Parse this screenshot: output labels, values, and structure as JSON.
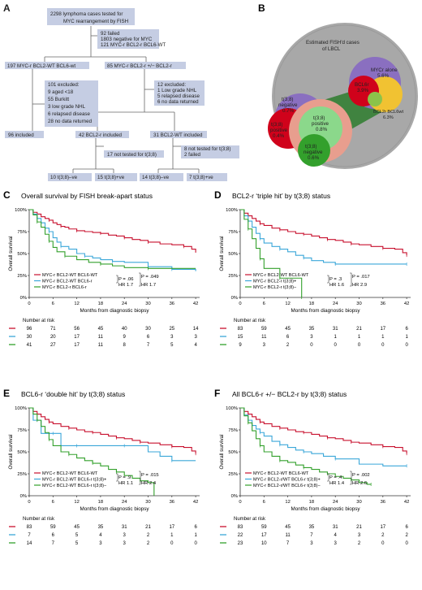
{
  "panelA": {
    "letter": "A",
    "boxes": {
      "top": [
        "2298 lymphoma cases tested for",
        "MYC rearrangement by FISH"
      ],
      "failed": [
        "92 failed",
        "1803 negative for MYC",
        "121 MYC-r BCL2-r BCL6-WT"
      ],
      "left": "197 MYC-r BCL2-WT BCL6-wt",
      "right": "85 MYC-r BCL2-r +/− BCL2-r",
      "excl1": [
        "101 excluded:",
        "9 aged <18",
        "55 Burkitt",
        "3 low grade NHL",
        "6 relapsed disease",
        "28 no data returned"
      ],
      "excl2": [
        "12 excluded:",
        "1 Low grade NHL",
        "5 relapsed disease",
        "6 no data returned"
      ],
      "inc96": "96 included",
      "inc42": "42 BCL2-r included",
      "inc31": "31 BCL2-WT included",
      "nt17": "17 not tested for t(3;8)",
      "nt8": [
        "8 not tested for t(3;8)",
        "2 failed"
      ],
      "r10": "10 t(3;8)–ve",
      "r15": "15 t(3;8)+ve",
      "r14": "14 t(3;8)–ve",
      "r7": "7 t(3;8)+ve"
    }
  },
  "panelB": {
    "letter": "B",
    "title": [
      "Estimated FISH'd cases",
      "of LBCL"
    ],
    "labels": {
      "mycr_alone": [
        "MYCr alone",
        "5.6%"
      ],
      "bcl6r": [
        "BCL6r",
        "3.9%"
      ],
      "bcl2r": [
        "BCL2r BCL6wt",
        "6.3%"
      ],
      "t38neg": [
        "t(3;8)",
        "negative",
        "0.7%"
      ],
      "t38pos": [
        "t(3;8)",
        "positive",
        "0.4%"
      ],
      "t38pos2": [
        "t(3;8)",
        "positive",
        "0.8%"
      ],
      "t38neg2": [
        "t(3;8)",
        "negative",
        "0.6%"
      ]
    }
  },
  "colors": {
    "red": "#c8102e",
    "blue": "#3ba7d9",
    "green": "#33a02c",
    "box": "#c5cde3"
  },
  "km": {
    "ylabel": "Overall survival",
    "xlabel": "Months from diagnostic biopsy",
    "risk_header": "Number at risk",
    "ticks_x": [
      "0",
      "6",
      "12",
      "18",
      "24",
      "30",
      "36",
      "42"
    ],
    "ticks_y": [
      "0%",
      "25%",
      "50%",
      "75%",
      "100%"
    ]
  },
  "chart_data": [
    {
      "panel": "C",
      "type": "line",
      "title": "Overall survival by FISH break-apart status",
      "xlim": [
        0,
        43
      ],
      "ylim": [
        0,
        100
      ],
      "series": [
        {
          "name": "MYC-r BCL2-WT BCL6-WT",
          "color": "red",
          "x": [
            0,
            1,
            2,
            3,
            4,
            5,
            6,
            7,
            8,
            9,
            10,
            12,
            14,
            16,
            18,
            20,
            22,
            24,
            26,
            28,
            30,
            33,
            36,
            39,
            41,
            42
          ],
          "y": [
            100,
            97,
            95,
            92,
            90,
            88,
            85,
            83,
            81,
            80,
            78,
            76,
            75,
            74,
            73,
            71,
            70,
            68,
            66,
            65,
            63,
            61,
            60,
            58,
            55,
            51
          ]
        },
        {
          "name": "MYC-r BCL2-WT BCL6-r",
          "color": "blue",
          "x": [
            0,
            1,
            2,
            3,
            4,
            5,
            6,
            7,
            8,
            10,
            12,
            14,
            16,
            18,
            21,
            24,
            30,
            36,
            42
          ],
          "y": [
            100,
            95,
            90,
            85,
            79,
            75,
            68,
            63,
            58,
            55,
            50,
            47,
            45,
            43,
            41,
            40,
            35,
            32,
            30
          ]
        },
        {
          "name": "MYC-r BCL2-r BCL6-r",
          "color": "green",
          "x": [
            0,
            1,
            2,
            3,
            4,
            5,
            6,
            7,
            9,
            12,
            15,
            18,
            21,
            24,
            30,
            36,
            42
          ],
          "y": [
            100,
            94,
            86,
            80,
            72,
            64,
            57,
            52,
            47,
            43,
            40,
            38,
            36,
            34,
            33,
            33,
            33
          ]
        }
      ],
      "stats": [
        [
          "P = .06",
          "HR 1.7"
        ],
        [
          "P = .049",
          "HR 1.7"
        ]
      ],
      "risk": [
        [
          96,
          71,
          56,
          45,
          40,
          30,
          25,
          14
        ],
        [
          30,
          20,
          17,
          11,
          9,
          6,
          3,
          3
        ],
        [
          41,
          27,
          17,
          11,
          8,
          7,
          5,
          4
        ]
      ]
    },
    {
      "panel": "D",
      "type": "line",
      "title": "BCL2-r ‘triple hit’ by t(3;8) status",
      "xlim": [
        0,
        43
      ],
      "ylim": [
        0,
        100
      ],
      "series": [
        {
          "name": "MYC-r BCL2-WT BCL6-WT",
          "color": "red",
          "x": [
            0,
            1,
            2,
            3,
            4,
            5,
            6,
            8,
            10,
            12,
            14,
            16,
            18,
            20,
            22,
            24,
            26,
            28,
            30,
            33,
            36,
            39,
            41,
            42
          ],
          "y": [
            100,
            96,
            93,
            90,
            87,
            84,
            82,
            79,
            77,
            75,
            73,
            72,
            70,
            68,
            66,
            65,
            63,
            61,
            60,
            58,
            56,
            55,
            51,
            48
          ]
        },
        {
          "name": "MYC-r BCL2-r t(3;8)+",
          "color": "blue",
          "x": [
            0,
            1,
            2,
            3,
            4,
            5,
            6,
            8,
            10,
            12,
            14,
            16,
            18,
            21,
            24,
            30,
            36,
            42
          ],
          "y": [
            100,
            93,
            87,
            80,
            73,
            67,
            62,
            58,
            55,
            52,
            48,
            45,
            42,
            40,
            38,
            38,
            38,
            38
          ]
        },
        {
          "name": "MYC-r BCL2-r t(3;8)−",
          "color": "green",
          "x": [
            0,
            1,
            2,
            3,
            4,
            5,
            6,
            8,
            10,
            12,
            14,
            15.5
          ],
          "y": [
            100,
            89,
            78,
            67,
            56,
            44,
            33,
            33,
            22,
            22,
            22,
            0
          ]
        }
      ],
      "stats": [
        [
          "P = .3",
          "HR 1.6"
        ],
        [
          "P = .017",
          "HR 2.9"
        ]
      ],
      "risk": [
        [
          83,
          59,
          45,
          35,
          31,
          21,
          17,
          6
        ],
        [
          15,
          11,
          6,
          3,
          1,
          1,
          1,
          1
        ],
        [
          9,
          3,
          2,
          0,
          0,
          0,
          0,
          0
        ]
      ]
    },
    {
      "panel": "E",
      "type": "line",
      "title": "BCL6-r ‘double hit’ by t(3;8) status",
      "xlim": [
        0,
        43
      ],
      "ylim": [
        0,
        100
      ],
      "series": [
        {
          "name": "MYC-r BCL2-WT BCL6-WT",
          "color": "red",
          "x": [
            0,
            1,
            2,
            3,
            4,
            5,
            6,
            8,
            10,
            12,
            14,
            16,
            18,
            20,
            22,
            24,
            26,
            28,
            30,
            33,
            36,
            39,
            41,
            42
          ],
          "y": [
            100,
            96,
            93,
            90,
            87,
            84,
            82,
            79,
            77,
            75,
            73,
            72,
            70,
            68,
            66,
            65,
            63,
            61,
            60,
            58,
            56,
            55,
            51,
            48
          ]
        },
        {
          "name": "MYC-r BCL2-WT BCL6-r t(3;8)+",
          "color": "blue",
          "x": [
            0,
            1,
            2,
            3,
            4,
            6,
            8,
            10,
            12,
            14,
            18,
            24,
            30,
            33,
            36,
            42
          ],
          "y": [
            100,
            86,
            86,
            71,
            71,
            71,
            57,
            57,
            57,
            57,
            57,
            57,
            50,
            45,
            40,
            40
          ]
        },
        {
          "name": "MYC-r BCL2-WT BCL6-r t(3;8)−",
          "color": "green",
          "x": [
            0,
            1,
            2,
            3,
            4,
            5,
            6,
            8,
            10,
            12,
            14,
            16,
            18,
            20,
            22,
            24,
            26,
            28,
            30,
            31.5
          ],
          "y": [
            100,
            93,
            86,
            79,
            72,
            64,
            57,
            50,
            47,
            43,
            40,
            37,
            34,
            30,
            27,
            23,
            20,
            17,
            15,
            0
          ]
        }
      ],
      "stats": [
        [
          "P = .9",
          "HR 1.1"
        ],
        [
          "P = .015",
          "HR 2.4"
        ]
      ],
      "risk": [
        [
          83,
          59,
          45,
          35,
          31,
          21,
          17,
          6
        ],
        [
          7,
          6,
          5,
          4,
          3,
          2,
          1,
          1
        ],
        [
          14,
          7,
          5,
          3,
          3,
          2,
          0,
          0
        ]
      ]
    },
    {
      "panel": "F",
      "type": "line",
      "title": "All BCL6-r +/− BCL2-r by t(3;8) status",
      "xlim": [
        0,
        43
      ],
      "ylim": [
        0,
        100
      ],
      "series": [
        {
          "name": "MYC-r BCL2-WT BCL6-WT",
          "color": "red",
          "x": [
            0,
            1,
            2,
            3,
            4,
            5,
            6,
            8,
            10,
            12,
            14,
            16,
            18,
            20,
            22,
            24,
            26,
            28,
            30,
            33,
            36,
            39,
            41,
            42
          ],
          "y": [
            100,
            96,
            93,
            90,
            87,
            84,
            82,
            79,
            77,
            75,
            73,
            72,
            70,
            68,
            66,
            65,
            63,
            61,
            60,
            58,
            56,
            55,
            51,
            48
          ]
        },
        {
          "name": "MYC-r BCL2-r/WT BCL6-r t(3;8)+",
          "color": "blue",
          "x": [
            0,
            1,
            2,
            3,
            4,
            5,
            6,
            8,
            10,
            12,
            14,
            16,
            18,
            21,
            24,
            30,
            36,
            42
          ],
          "y": [
            100,
            92,
            86,
            80,
            76,
            72,
            68,
            62,
            58,
            55,
            52,
            50,
            48,
            45,
            42,
            36,
            34,
            34
          ]
        },
        {
          "name": "MYC-r BCL2-r/WT BCL6-r t(3;8)−",
          "color": "green",
          "x": [
            0,
            1,
            2,
            3,
            4,
            5,
            6,
            8,
            10,
            12,
            14,
            16,
            18,
            20,
            22,
            24,
            26,
            28,
            30,
            32,
            33
          ],
          "y": [
            100,
            91,
            83,
            74,
            65,
            57,
            50,
            45,
            40,
            38,
            35,
            32,
            30,
            27,
            25,
            22,
            20,
            18,
            15,
            13,
            13
          ]
        }
      ],
      "stats": [
        [
          "P = .4",
          "HR 1.4"
        ],
        [
          "P = .002",
          "HR 2.6"
        ]
      ],
      "risk": [
        [
          83,
          59,
          45,
          35,
          31,
          21,
          17,
          6
        ],
        [
          22,
          17,
          11,
          7,
          4,
          3,
          2,
          2
        ],
        [
          23,
          10,
          7,
          3,
          3,
          2,
          0,
          0
        ]
      ]
    }
  ]
}
